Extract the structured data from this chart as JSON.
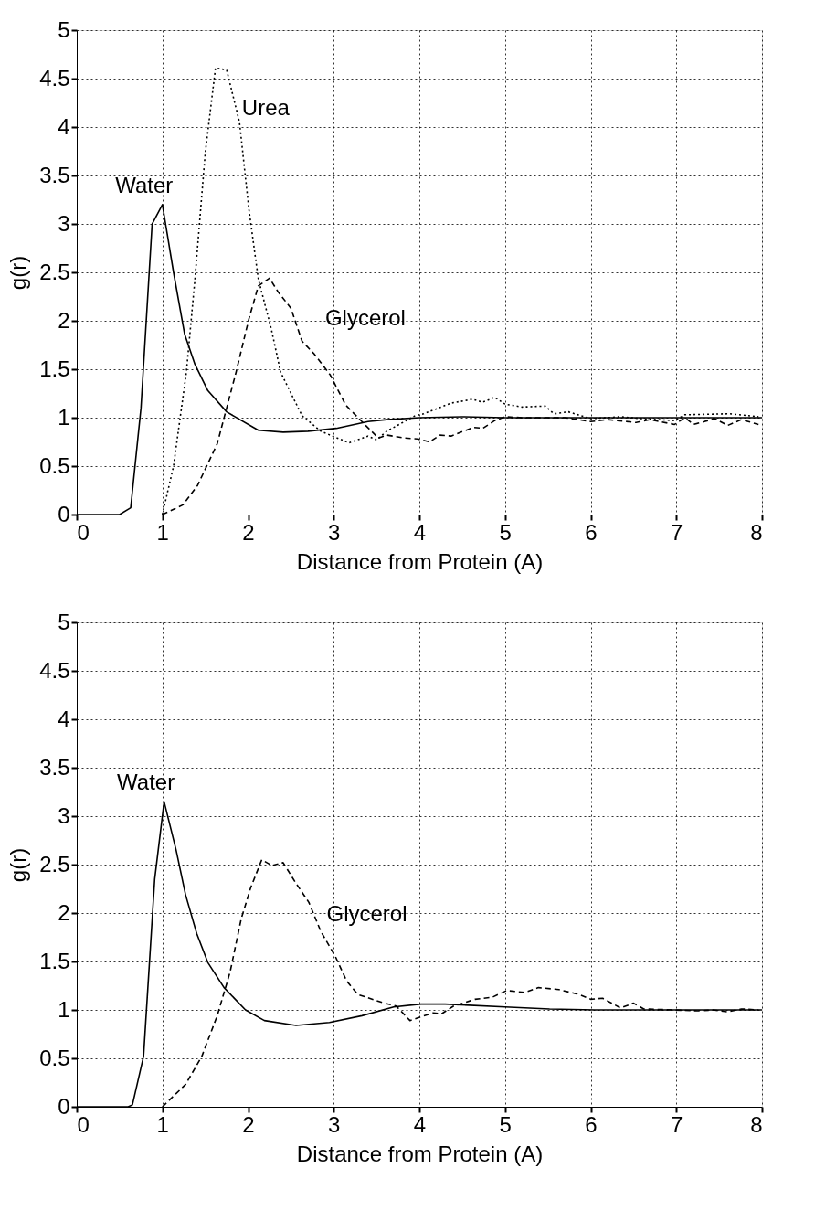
{
  "chart_data": [
    {
      "type": "line",
      "xlabel": "Distance from Protein (A)",
      "ylabel": "g(r)",
      "xlim": [
        0,
        8
      ],
      "ylim": [
        0,
        5
      ],
      "xticks": [
        0,
        1,
        2,
        3,
        4,
        5,
        6,
        7,
        8
      ],
      "yticks": [
        0,
        0.5,
        1,
        1.5,
        2,
        2.5,
        3,
        3.5,
        4,
        4.5,
        5
      ],
      "grid": true,
      "marker": "none",
      "series": [
        {
          "name": "Water",
          "color": "#000000",
          "line_style": "solid",
          "x": [
            0,
            0.5,
            0.63,
            0.75,
            0.88,
            1.0,
            1.13,
            1.26,
            1.38,
            1.53,
            1.75,
            2.12,
            2.41,
            2.7,
            3.03,
            3.4,
            3.62,
            4.0,
            4.5,
            5.0,
            5.5,
            6.0,
            6.5,
            7.0,
            7.5,
            8.0
          ],
          "values": [
            0,
            0,
            0.07,
            1.1,
            3.0,
            3.2,
            2.5,
            1.86,
            1.55,
            1.28,
            1.06,
            0.87,
            0.85,
            0.86,
            0.89,
            0.96,
            0.98,
            1.0,
            1.01,
            1.0,
            1.0,
            1.0,
            1.0,
            1.0,
            1.0,
            1.0
          ]
        },
        {
          "name": "Urea",
          "color": "#000000",
          "line_style": "dotted",
          "x": [
            1.0,
            1.13,
            1.28,
            1.38,
            1.5,
            1.62,
            1.75,
            1.9,
            2.01,
            2.12,
            2.27,
            2.38,
            2.63,
            2.85,
            3.18,
            3.4,
            3.5,
            3.62,
            3.95,
            4.05,
            4.37,
            4.62,
            4.74,
            4.88,
            5.0,
            5.2,
            5.47,
            5.57,
            5.74,
            6.0,
            6.35,
            6.6,
            6.98,
            7.1,
            7.62,
            7.96
          ],
          "values": [
            0,
            0.5,
            1.47,
            2.43,
            3.73,
            4.61,
            4.59,
            4.05,
            3.15,
            2.43,
            1.92,
            1.47,
            1.02,
            0.86,
            0.74,
            0.81,
            0.77,
            0.86,
            1.02,
            1.04,
            1.15,
            1.19,
            1.16,
            1.21,
            1.14,
            1.11,
            1.12,
            1.04,
            1.06,
            0.99,
            1.01,
            0.99,
            0.97,
            1.03,
            1.04,
            1.01
          ]
        },
        {
          "name": "Glycerol",
          "color": "#000000",
          "line_style": "dashed",
          "x": [
            1.0,
            1.24,
            1.41,
            1.64,
            1.86,
            2.01,
            2.12,
            2.25,
            2.35,
            2.5,
            2.63,
            2.77,
            2.96,
            3.14,
            3.34,
            3.52,
            3.62,
            3.83,
            3.98,
            4.12,
            4.24,
            4.37,
            4.63,
            4.74,
            4.88,
            5.0,
            5.2,
            5.45,
            5.7,
            6.0,
            6.2,
            6.53,
            6.69,
            6.98,
            7.1,
            7.2,
            7.45,
            7.6,
            7.76,
            7.96
          ],
          "values": [
            0,
            0.1,
            0.3,
            0.73,
            1.47,
            2.02,
            2.36,
            2.44,
            2.3,
            2.13,
            1.79,
            1.66,
            1.44,
            1.13,
            0.95,
            0.79,
            0.82,
            0.79,
            0.78,
            0.75,
            0.82,
            0.81,
            0.9,
            0.89,
            0.97,
            1.01,
            1.0,
            1.0,
            1.0,
            0.96,
            0.98,
            0.95,
            0.98,
            0.93,
            1.0,
            0.93,
            0.99,
            0.92,
            0.98,
            0.93
          ]
        }
      ]
    },
    {
      "type": "line",
      "xlabel": "Distance from Protein (A)",
      "ylabel": "g(r)",
      "xlim": [
        0,
        8
      ],
      "ylim": [
        0,
        5
      ],
      "xticks": [
        0,
        1,
        2,
        3,
        4,
        5,
        6,
        7,
        8
      ],
      "yticks": [
        0,
        0.5,
        1,
        1.5,
        2,
        2.5,
        3,
        3.5,
        4,
        4.5,
        5
      ],
      "grid": true,
      "marker": "none",
      "series": [
        {
          "name": "Water",
          "color": "#000000",
          "line_style": "solid",
          "x": [
            0,
            0.6,
            0.65,
            0.78,
            0.91,
            1.02,
            1.16,
            1.27,
            1.4,
            1.53,
            1.72,
            1.97,
            2.19,
            2.56,
            2.95,
            3.33,
            3.7,
            4.02,
            4.3,
            5.0,
            5.52,
            6.05,
            7.0,
            8.0
          ],
          "values": [
            0,
            0,
            0.02,
            0.52,
            2.35,
            3.15,
            2.65,
            2.19,
            1.79,
            1.49,
            1.23,
            1.0,
            0.89,
            0.84,
            0.87,
            0.94,
            1.03,
            1.06,
            1.06,
            1.03,
            1.01,
            1.0,
            1.0,
            1.0
          ]
        },
        {
          "name": "Glycerol",
          "color": "#000000",
          "line_style": "dashed",
          "x": [
            1.0,
            1.27,
            1.46,
            1.64,
            1.79,
            1.92,
            2.03,
            2.16,
            2.28,
            2.41,
            2.55,
            2.71,
            2.85,
            3.02,
            3.15,
            3.28,
            3.59,
            3.73,
            3.89,
            4.16,
            4.26,
            4.4,
            4.65,
            4.85,
            5.02,
            5.23,
            5.39,
            5.63,
            5.86,
            6.0,
            6.14,
            6.35,
            6.5,
            6.62,
            6.96,
            7.27,
            7.43,
            7.6,
            7.76,
            7.96
          ],
          "values": [
            0,
            0.23,
            0.52,
            0.94,
            1.39,
            1.94,
            2.26,
            2.55,
            2.49,
            2.52,
            2.32,
            2.11,
            1.81,
            1.55,
            1.3,
            1.16,
            1.07,
            1.04,
            0.89,
            0.97,
            0.96,
            1.04,
            1.11,
            1.13,
            1.2,
            1.18,
            1.23,
            1.21,
            1.16,
            1.11,
            1.12,
            1.02,
            1.07,
            1.01,
            1.0,
            0.99,
            1.0,
            0.98,
            1.01,
            1.0
          ]
        }
      ]
    }
  ]
}
